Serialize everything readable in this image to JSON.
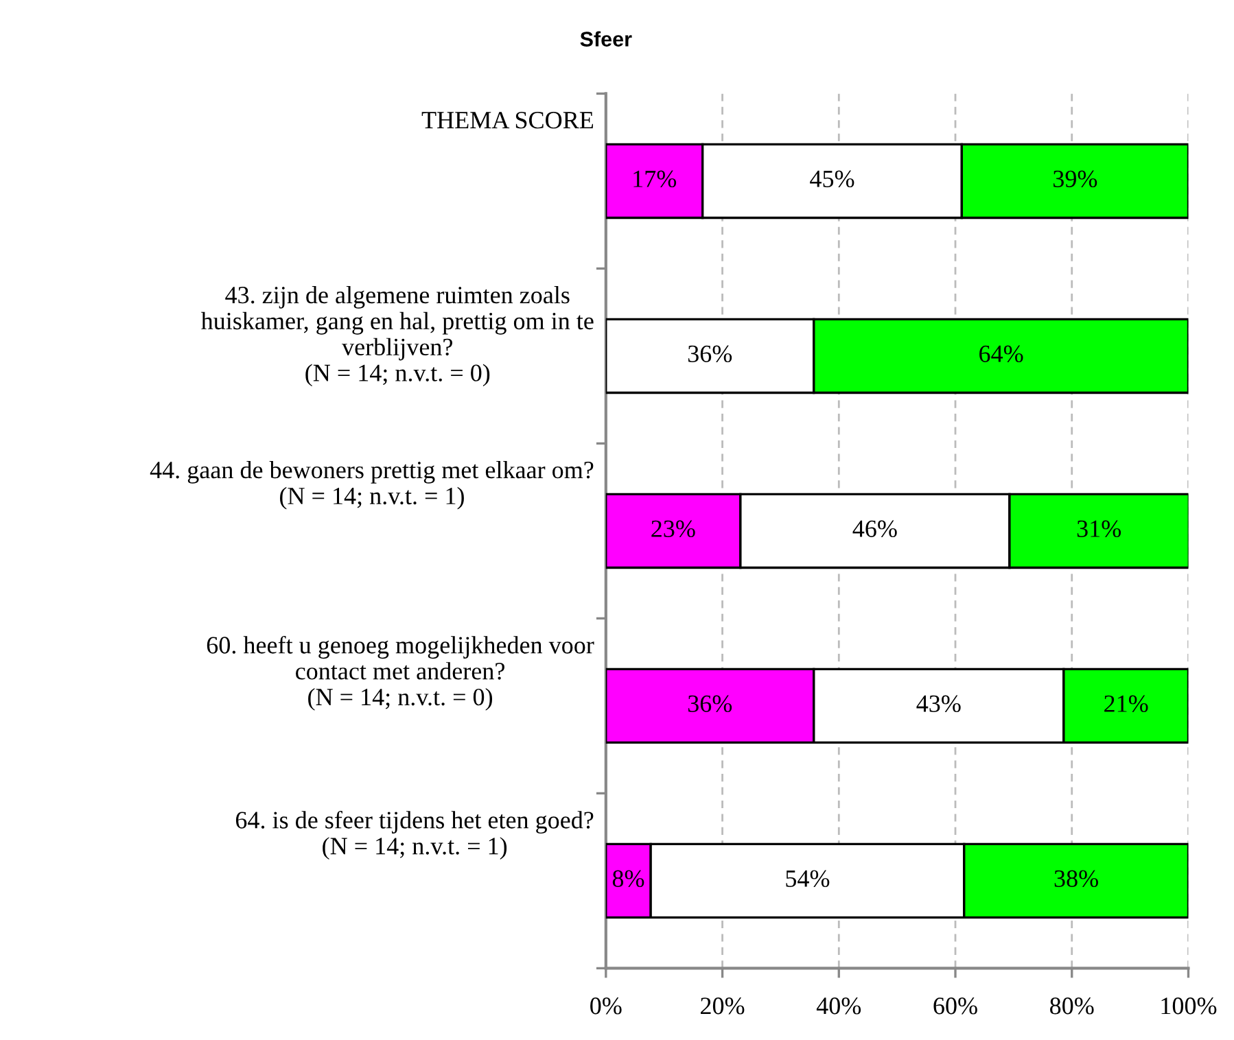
{
  "chart_data": {
    "type": "bar",
    "title": "Sfeer",
    "orientation": "horizontal",
    "stacked": true,
    "categories": [
      "THEMA SCORE",
      "43. zijn de algemene ruimten zoals\nhuiskamer, gang en hal, prettig om in te\nverblijven?\n(N = 14; n.v.t. = 0)",
      "44. gaan de bewoners prettig met elkaar om?\n(N = 14; n.v.t. = 1)",
      "60. heeft u genoeg mogelijkheden voor\ncontact met anderen?\n(N = 14; n.v.t. = 0)",
      "64. is de sfeer tijdens het eten goed?\n(N = 14; n.v.t. = 1)"
    ],
    "series": [
      {
        "color": "#ff00ff",
        "values": [
          16.6,
          0,
          23.1,
          35.7,
          7.7
        ],
        "value_labels": [
          "17%",
          null,
          "23%",
          "36%",
          "8%"
        ]
      },
      {
        "color": "#ffffff",
        "values": [
          44.5,
          35.7,
          46.2,
          42.9,
          53.8
        ],
        "value_labels": [
          "45%",
          "36%",
          "46%",
          "43%",
          "54%"
        ]
      },
      {
        "color": "#00ff00",
        "values": [
          38.9,
          64.3,
          30.8,
          21.4,
          38.5
        ],
        "value_labels": [
          "39%",
          "64%",
          "31%",
          "21%",
          "38%"
        ]
      }
    ],
    "xlim": [
      0,
      100
    ],
    "xticks": [
      {
        "value": 0,
        "label": "0%"
      },
      {
        "value": 20,
        "label": "20%"
      },
      {
        "value": 40,
        "label": "40%"
      },
      {
        "value": 60,
        "label": "60%"
      },
      {
        "value": 80,
        "label": "80%"
      },
      {
        "value": 100,
        "label": "100%"
      }
    ],
    "grid": "x",
    "legend": false
  }
}
